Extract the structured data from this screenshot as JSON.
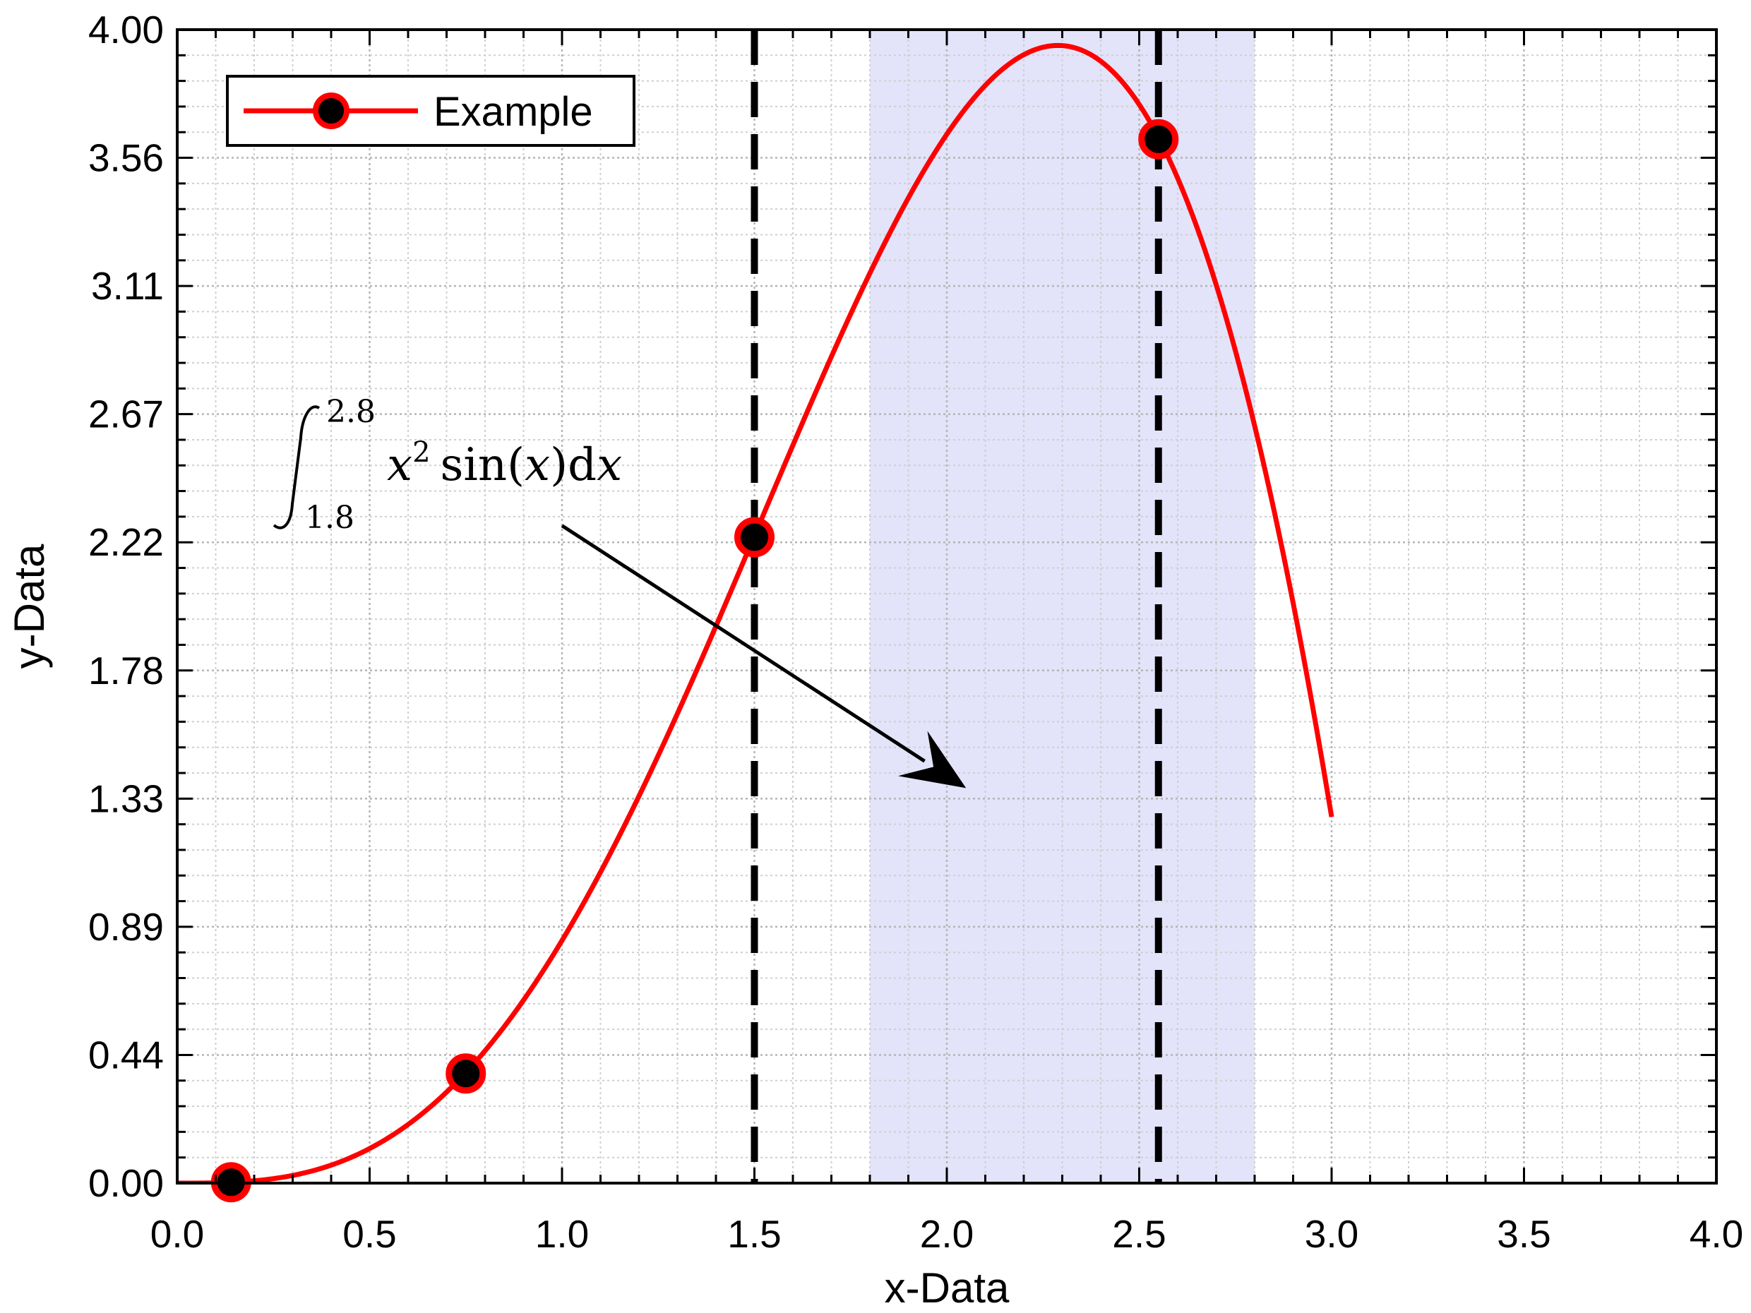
{
  "chart_data": {
    "type": "line",
    "title": "",
    "xlabel": "x-Data",
    "ylabel": "y-Data",
    "xlim": [
      0.0,
      4.0
    ],
    "ylim": [
      0.0,
      4.0
    ],
    "xticks": [
      "0.0",
      "0.5",
      "1.0",
      "1.5",
      "2.0",
      "2.5",
      "3.0",
      "3.5",
      "4.0"
    ],
    "yticks": [
      "0.00",
      "0.44",
      "0.89",
      "1.33",
      "1.78",
      "2.22",
      "2.67",
      "3.11",
      "3.56",
      "4.00"
    ],
    "grid": true,
    "legend_position": "top-left",
    "function": "x^2 sin(x)",
    "series": [
      {
        "name": "Example",
        "color": "#ff0000",
        "marker_face": "#000000",
        "x_range": [
          0.0,
          3.0
        ],
        "markers": [
          {
            "x": 0.14,
            "y": 0.003
          },
          {
            "x": 0.75,
            "y": 0.38
          },
          {
            "x": 1.5,
            "y": 2.24
          },
          {
            "x": 2.55,
            "y": 3.62
          }
        ]
      }
    ],
    "shaded_region": {
      "x": [
        1.8,
        2.8
      ],
      "color": "#e3e3fa"
    },
    "vertical_lines": [
      {
        "x": 1.5,
        "style": "dashed",
        "color": "#000000"
      },
      {
        "x": 2.55,
        "style": "dashed",
        "color": "#000000"
      }
    ],
    "annotation": {
      "lower": "1.8",
      "upper": "2.8",
      "body_x": "x",
      "body_exp": "2",
      "body_sin": "sin(",
      "body_arg": "x",
      "body_close": ")d",
      "body_dx": "x",
      "arrow_from": {
        "x": 1.0,
        "y": 2.28
      },
      "arrow_to": {
        "x": 2.05,
        "y": 1.37
      }
    }
  }
}
